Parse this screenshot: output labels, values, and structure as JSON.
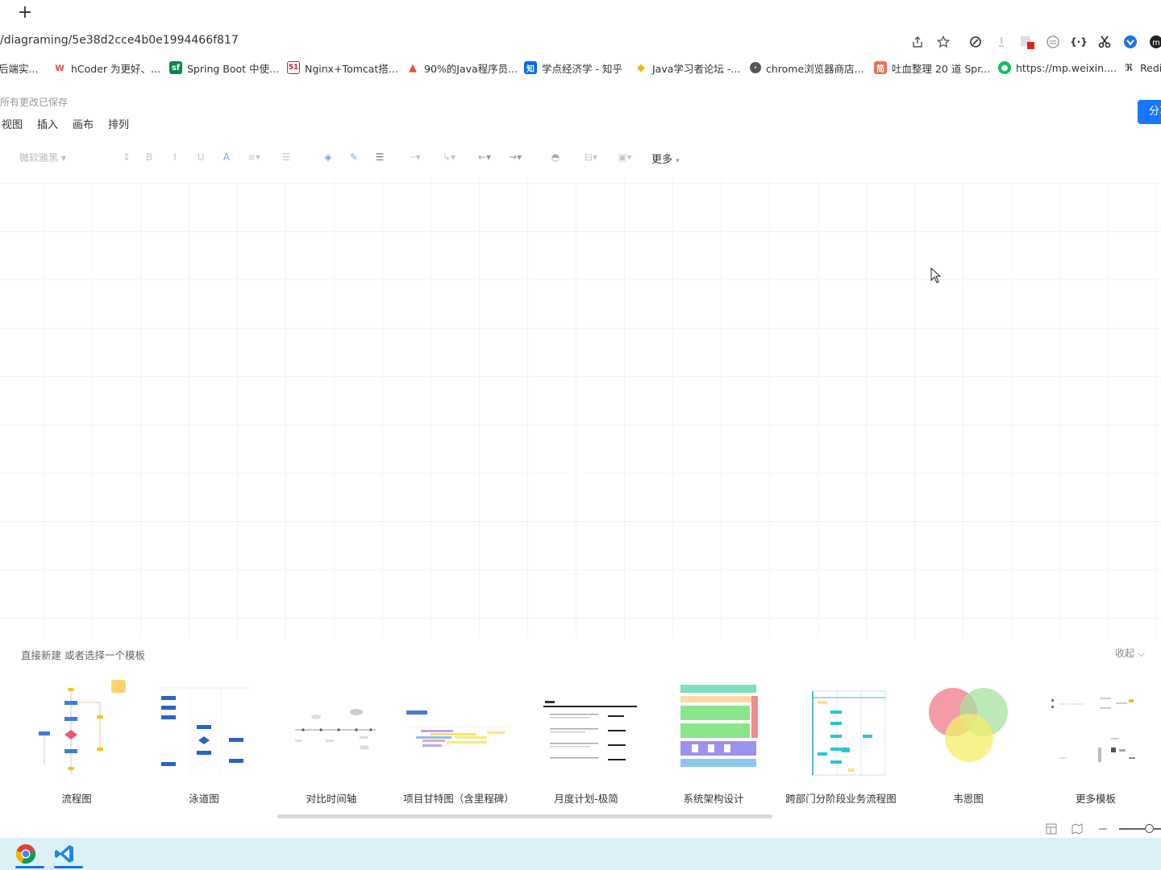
{
  "browser": {
    "new_tab": "+",
    "url": "/diagraming/5e38d2cce4b0e1994466f817",
    "bookmarks": [
      {
        "label": "后端实...",
        "icon": "generic-bookmark-icon"
      },
      {
        "label": "hCoder 为更好、...",
        "icon": "hcoder-icon"
      },
      {
        "label": "Spring Boot 中使...",
        "icon": "segmentfault-icon"
      },
      {
        "label": "Nginx+Tomcat搭...",
        "icon": "51cto-icon"
      },
      {
        "label": "90%的Java程序员...",
        "icon": "flame-icon"
      },
      {
        "label": "学点经济学 - 知乎",
        "icon": "zhihu-icon"
      },
      {
        "label": "Java学习者论坛 -...",
        "icon": "java-forum-icon"
      },
      {
        "label": "chrome浏览器商店...",
        "icon": "globe-icon"
      },
      {
        "label": "吐血整理 20 道 Spr...",
        "icon": "jianshu-icon"
      },
      {
        "label": "https://mp.weixin....",
        "icon": "wechat-icon"
      },
      {
        "label": "Redi",
        "icon": "redis-icon"
      }
    ]
  },
  "app": {
    "save_status": "所有更改已保存",
    "menus": [
      "视图",
      "插入",
      "画布",
      "排列"
    ],
    "share_label": "分享",
    "toolbar": {
      "font": "微软雅黑",
      "more": "更多"
    }
  },
  "template_panel": {
    "title": "直接新建 或者选择一个模板",
    "collapse": "收起",
    "templates": [
      {
        "label": "流程图"
      },
      {
        "label": "泳道图"
      },
      {
        "label": "对比时间轴"
      },
      {
        "label": "项目甘特图（含里程碑）"
      },
      {
        "label": "月度计划-极简"
      },
      {
        "label": "系统架构设计"
      },
      {
        "label": "跨部门分阶段业务流程图"
      },
      {
        "label": "韦恩图"
      },
      {
        "label": "更多模板"
      }
    ]
  },
  "taskbar": {
    "apps": [
      "chrome-icon",
      "vscode-icon"
    ]
  }
}
